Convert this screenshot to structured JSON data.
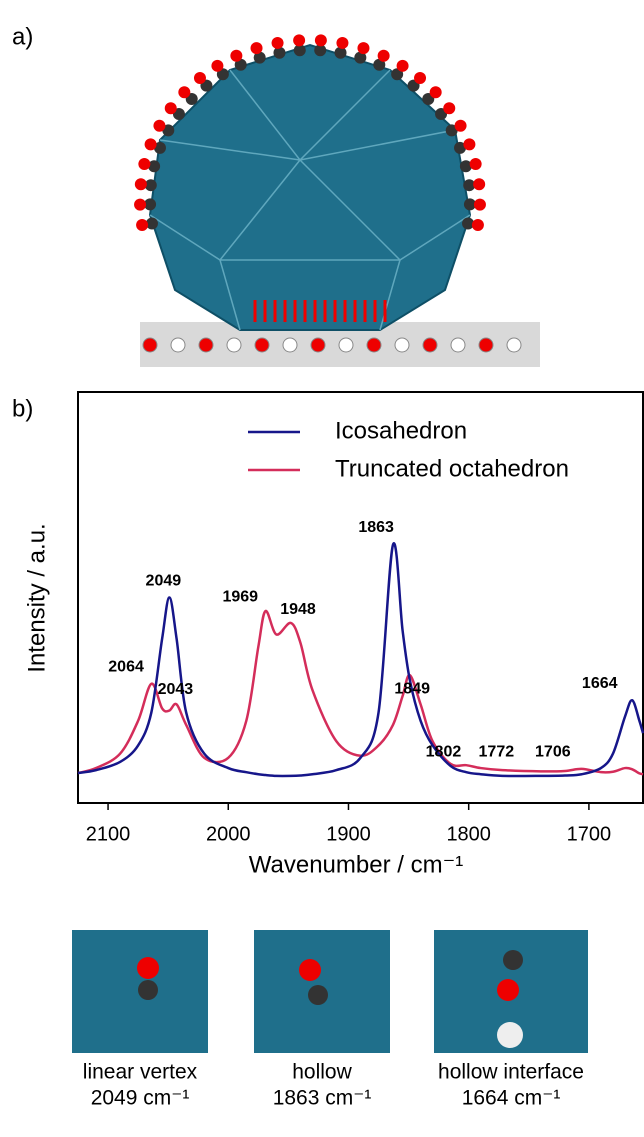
{
  "panel_labels": [
    "a)",
    "b)"
  ],
  "chart_data": {
    "type": "line",
    "xlabel": "Wavenumber / cm⁻¹",
    "ylabel": "Intensity / a.u.",
    "x": [
      2125,
      2110,
      2090,
      2075,
      2064,
      2055,
      2049,
      2043,
      2035,
      2020,
      2000,
      1985,
      1975,
      1969,
      1960,
      1948,
      1940,
      1930,
      1910,
      1890,
      1875,
      1863,
      1855,
      1849,
      1840,
      1830,
      1815,
      1802,
      1790,
      1772,
      1740,
      1720,
      1706,
      1690,
      1680,
      1670,
      1664,
      1658,
      1655
    ],
    "series": [
      {
        "name": "Icosahedron",
        "color": "#16168a",
        "values": [
          0.073,
          0.08,
          0.1,
          0.14,
          0.22,
          0.4,
          0.5,
          0.4,
          0.22,
          0.12,
          0.085,
          0.075,
          0.07,
          0.068,
          0.066,
          0.066,
          0.067,
          0.07,
          0.08,
          0.11,
          0.22,
          0.628,
          0.42,
          0.3,
          0.2,
          0.14,
          0.09,
          0.075,
          0.07,
          0.066,
          0.066,
          0.067,
          0.07,
          0.085,
          0.12,
          0.21,
          0.25,
          0.2,
          0.17
        ]
      },
      {
        "name": "Truncated octahedron",
        "color": "#d42d5a",
        "values": [
          0.073,
          0.085,
          0.12,
          0.2,
          0.29,
          0.23,
          0.225,
          0.24,
          0.19,
          0.11,
          0.11,
          0.2,
          0.38,
          0.467,
          0.41,
          0.438,
          0.39,
          0.275,
          0.15,
          0.115,
          0.14,
          0.19,
          0.26,
          0.311,
          0.24,
          0.15,
          0.095,
          0.092,
          0.085,
          0.08,
          0.077,
          0.078,
          0.083,
          0.075,
          0.076,
          0.085,
          0.082,
          0.072,
          0.07
        ]
      }
    ],
    "xlim": [
      2125,
      1655
    ],
    "ylim": [
      0,
      1
    ],
    "xticks": [
      2100,
      2000,
      1900,
      1800,
      1700
    ],
    "grid": false,
    "legend": "upper right",
    "annotations": [
      {
        "text": "2049",
        "x": 2054,
        "y": 0.54,
        "series": 0
      },
      {
        "text": "2064",
        "x": 2085,
        "y": 0.33,
        "series": 1
      },
      {
        "text": "2043",
        "x": 2044,
        "y": 0.275,
        "series": 1
      },
      {
        "text": "1969",
        "x": 1990,
        "y": 0.5,
        "series": 1
      },
      {
        "text": "1948",
        "x": 1942,
        "y": 0.47,
        "series": 1
      },
      {
        "text": "1863",
        "x": 1877,
        "y": 0.67,
        "series": 0
      },
      {
        "text": "1849",
        "x": 1847,
        "y": 0.277,
        "series": 1
      },
      {
        "text": "1802",
        "x": 1821,
        "y": 0.124,
        "series": 1
      },
      {
        "text": "1772",
        "x": 1777,
        "y": 0.124,
        "series": 1
      },
      {
        "text": "1706",
        "x": 1730,
        "y": 0.124,
        "series": 1
      },
      {
        "text": "1664",
        "x": 1691,
        "y": 0.29,
        "series": 0
      }
    ]
  },
  "insets": [
    {
      "label": "linear vertex",
      "wavenumber": "2049 cm⁻¹"
    },
    {
      "label": "hollow",
      "wavenumber": "1863 cm⁻¹"
    },
    {
      "label": "hollow interface",
      "wavenumber": "1664 cm⁻¹"
    }
  ]
}
